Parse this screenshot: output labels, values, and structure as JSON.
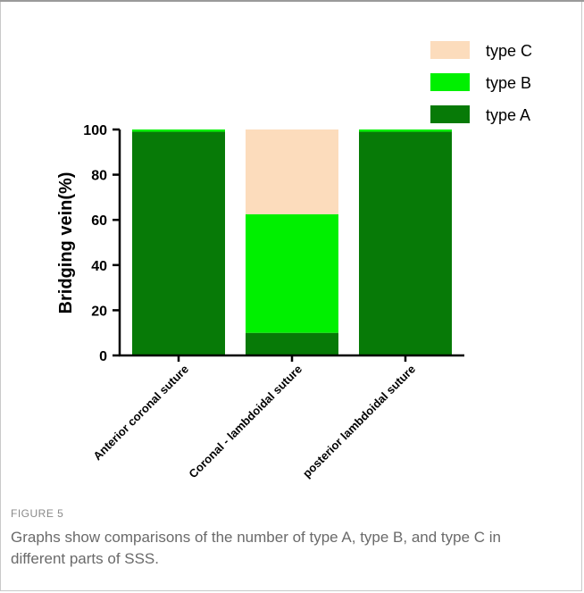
{
  "chart_data": {
    "type": "bar",
    "stacked": true,
    "categories": [
      "Anterior coronal suture",
      "Coronal - lambdoidal suture",
      "posterior lambdoidal suture"
    ],
    "series": [
      {
        "name": "type A",
        "values": [
          99,
          10,
          99
        ],
        "color": "#077a07"
      },
      {
        "name": "type B",
        "values": [
          1,
          52.5,
          1
        ],
        "color": "#00f000"
      },
      {
        "name": "type C",
        "values": [
          0,
          37.5,
          0
        ],
        "color": "#fcdcbc"
      }
    ],
    "ylabel": "Bridging vein(%)",
    "ylim": [
      0,
      100
    ],
    "yticks": [
      "0",
      "20",
      "40",
      "60",
      "80",
      "100"
    ],
    "legend_position": "top-right"
  },
  "figure": {
    "label": "FIGURE 5",
    "caption": "Graphs show comparisons of the number of type A, type B, and type C in different parts of SSS."
  }
}
